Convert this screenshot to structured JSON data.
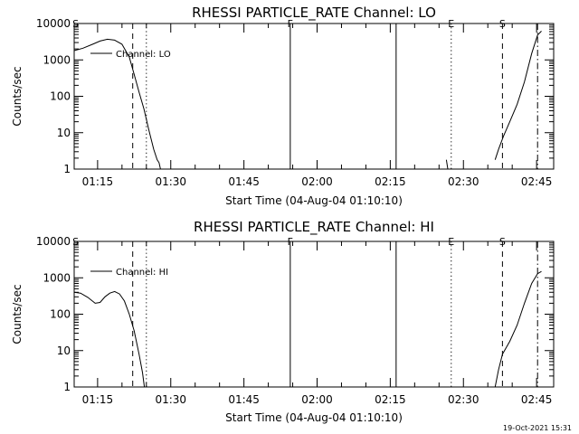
{
  "footer": {
    "timestamp": "19-Oct-2021 15:31"
  },
  "chart_data": [
    {
      "type": "line",
      "title": "RHESSI PARTICLE_RATE Channel: LO",
      "xlabel": "Start Time (04-Aug-04 01:10:10)",
      "ylabel": "Counts/sec",
      "y_scale": "log",
      "ylim": [
        1,
        10000
      ],
      "xlim_minutes": [
        70.2,
        168.5
      ],
      "x_ticks": [
        {
          "t": 75,
          "label": "01:15"
        },
        {
          "t": 90,
          "label": "01:30"
        },
        {
          "t": 105,
          "label": "01:45"
        },
        {
          "t": 120,
          "label": "02:00"
        },
        {
          "t": 135,
          "label": "02:15"
        },
        {
          "t": 150,
          "label": "02:30"
        },
        {
          "t": 165,
          "label": "02:45"
        }
      ],
      "y_ticks": [
        {
          "v": 1,
          "label": "1"
        },
        {
          "v": 10,
          "label": "10"
        },
        {
          "v": 100,
          "label": "100"
        },
        {
          "v": 1000,
          "label": "1000"
        },
        {
          "v": 10000,
          "label": "10000"
        }
      ],
      "legend": [
        {
          "name": "Channel: LO",
          "position": "top-left"
        }
      ],
      "markers": [
        {
          "t": 70.5,
          "style": "none",
          "label": "S"
        },
        {
          "t": 82.2,
          "style": "dashed",
          "label": ""
        },
        {
          "t": 85.0,
          "style": "dotted",
          "label": ""
        },
        {
          "t": 114.5,
          "style": "solid",
          "label": "F"
        },
        {
          "t": 136.2,
          "style": "solid",
          "label": ""
        },
        {
          "t": 147.5,
          "style": "dotted",
          "label": "E"
        },
        {
          "t": 158.0,
          "style": "dashed",
          "label": "S"
        },
        {
          "t": 165.2,
          "style": "dashdot",
          "label": ""
        }
      ],
      "series": [
        {
          "name": "Channel: LO",
          "segments": [
            [
              [
                70.2,
                1800
              ],
              [
                72,
                2100
              ],
              [
                74,
                2700
              ],
              [
                75.5,
                3300
              ],
              [
                77,
                3700
              ],
              [
                78.5,
                3500
              ],
              [
                80,
                2700
              ],
              [
                81.5,
                1200
              ],
              [
                82.5,
                400
              ],
              [
                83.5,
                130
              ],
              [
                84.5,
                45
              ],
              [
                85.5,
                12
              ],
              [
                86.5,
                3.5
              ],
              [
                87.2,
                1.8
              ],
              [
                87.6,
                1.5
              ],
              [
                87.9,
                1.0
              ]
            ],
            [
              [
                146.5,
                1.8
              ],
              [
                146.8,
                1.0
              ]
            ],
            [
              [
                156.5,
                1.8
              ],
              [
                157.2,
                3.5
              ],
              [
                158.2,
                8
              ],
              [
                159.5,
                20
              ],
              [
                161,
                60
              ],
              [
                162.5,
                250
              ],
              [
                164,
                1500
              ],
              [
                165.2,
                4800
              ],
              [
                166,
                6200
              ]
            ]
          ]
        }
      ]
    },
    {
      "type": "line",
      "title": "RHESSI PARTICLE_RATE Channel: HI",
      "xlabel": "Start Time (04-Aug-04 01:10:10)",
      "ylabel": "Counts/sec",
      "y_scale": "log",
      "ylim": [
        1,
        10000
      ],
      "xlim_minutes": [
        70.2,
        168.5
      ],
      "x_ticks": [
        {
          "t": 75,
          "label": "01:15"
        },
        {
          "t": 90,
          "label": "01:30"
        },
        {
          "t": 105,
          "label": "01:45"
        },
        {
          "t": 120,
          "label": "02:00"
        },
        {
          "t": 135,
          "label": "02:15"
        },
        {
          "t": 150,
          "label": "02:30"
        },
        {
          "t": 165,
          "label": "02:45"
        }
      ],
      "y_ticks": [
        {
          "v": 1,
          "label": "1"
        },
        {
          "v": 10,
          "label": "10"
        },
        {
          "v": 100,
          "label": "100"
        },
        {
          "v": 1000,
          "label": "1000"
        },
        {
          "v": 10000,
          "label": "10000"
        }
      ],
      "legend": [
        {
          "name": "Channel: HI",
          "position": "top-left"
        }
      ],
      "markers": [
        {
          "t": 70.5,
          "style": "none",
          "label": "S"
        },
        {
          "t": 82.2,
          "style": "dashed",
          "label": ""
        },
        {
          "t": 85.0,
          "style": "dotted",
          "label": ""
        },
        {
          "t": 114.5,
          "style": "solid",
          "label": "F"
        },
        {
          "t": 136.2,
          "style": "solid",
          "label": ""
        },
        {
          "t": 147.5,
          "style": "dotted",
          "label": "E"
        },
        {
          "t": 158.0,
          "style": "dashed",
          "label": "S"
        },
        {
          "t": 165.2,
          "style": "dashdot",
          "label": ""
        }
      ],
      "series": [
        {
          "name": "Channel: HI",
          "segments": [
            [
              [
                70.2,
                400
              ],
              [
                71.5,
                380
              ],
              [
                73,
                290
              ],
              [
                74.5,
                200
              ],
              [
                75.5,
                210
              ],
              [
                76.5,
                300
              ],
              [
                77.5,
                380
              ],
              [
                78.5,
                420
              ],
              [
                79.5,
                360
              ],
              [
                80.5,
                230
              ],
              [
                81.5,
                100
              ],
              [
                82.5,
                35
              ],
              [
                83.5,
                8
              ],
              [
                84.2,
                2.5
              ],
              [
                84.6,
                1.0
              ]
            ],
            [
              [
                156.5,
                1.0
              ],
              [
                157.2,
                3
              ],
              [
                158,
                8
              ],
              [
                159.5,
                18
              ],
              [
                161,
                50
              ],
              [
                162.5,
                200
              ],
              [
                164,
                700
              ],
              [
                165.2,
                1300
              ],
              [
                166,
                1500
              ]
            ]
          ]
        }
      ]
    }
  ]
}
